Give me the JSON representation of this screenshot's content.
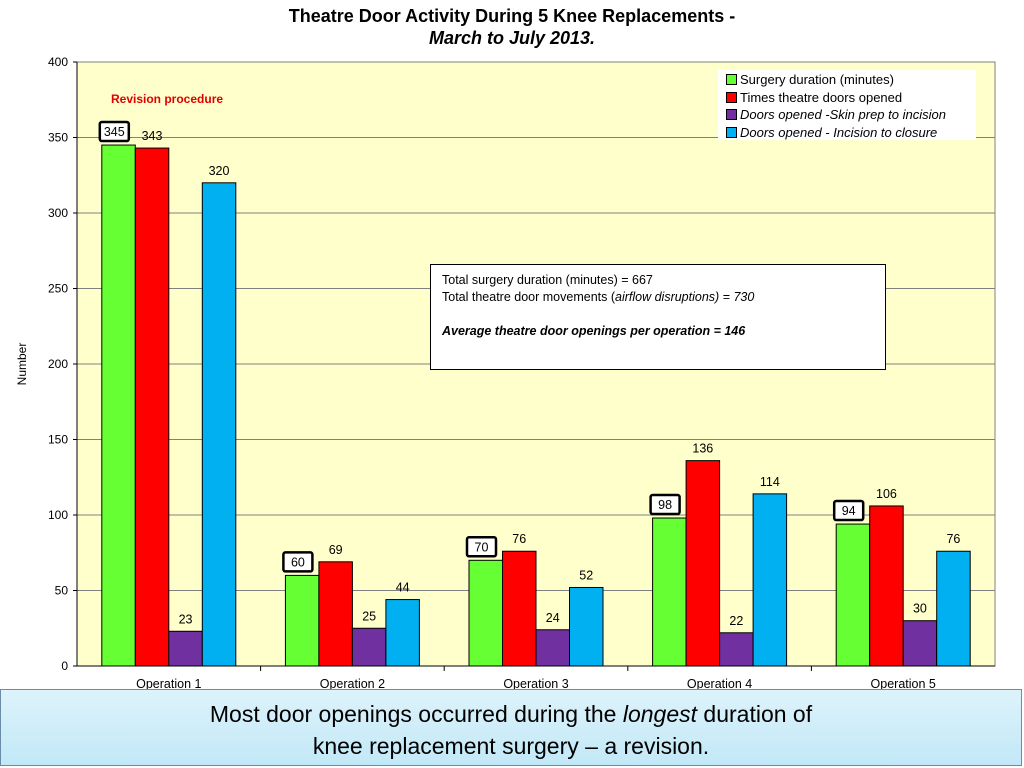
{
  "chart_data": {
    "type": "bar",
    "title": "Theatre Door Activity During 5 Knee Replacements -",
    "subtitle": "March to July 2013.",
    "xlabel": "",
    "ylabel": "Number",
    "ylim": [
      0,
      400
    ],
    "yticks": [
      0,
      50,
      100,
      150,
      200,
      250,
      300,
      350,
      400
    ],
    "categories": [
      "Operation 1",
      "Operation 2",
      "Operation 3",
      "Operation 4",
      "Operation 5"
    ],
    "series": [
      {
        "name": "Surgery duration (minutes)",
        "color": "#66ff33",
        "italic": false,
        "values": [
          345,
          60,
          70,
          98,
          94
        ],
        "boxed_labels": true
      },
      {
        "name": "Times theatre doors opened",
        "color": "#ff0000",
        "italic": false,
        "values": [
          343,
          69,
          76,
          136,
          106
        ],
        "boxed_labels": false
      },
      {
        "name": "Doors opened -Skin prep to incision",
        "color": "#7030a0",
        "italic": true,
        "values": [
          23,
          25,
          24,
          22,
          30
        ],
        "boxed_labels": false
      },
      {
        "name": "Doors opened - Incision to closure",
        "color": "#00b0f0",
        "italic": true,
        "values": [
          320,
          44,
          52,
          114,
          76
        ],
        "boxed_labels": false
      }
    ],
    "legend_position": "top-right",
    "grid": true,
    "annotations": {
      "revision_label": "Revision procedure",
      "summary_line1": "Total surgery duration (minutes) = 667",
      "summary_line2_prefix": "Total theatre door movements (",
      "summary_line2_italic": "airflow disruptions) = 730",
      "summary_line3": "Average theatre door openings per operation = 146"
    }
  },
  "caption": {
    "part1": "Most door openings occurred during the ",
    "emphasis": "longest",
    "part2": " duration of",
    "line2": "knee replacement surgery – a revision."
  }
}
